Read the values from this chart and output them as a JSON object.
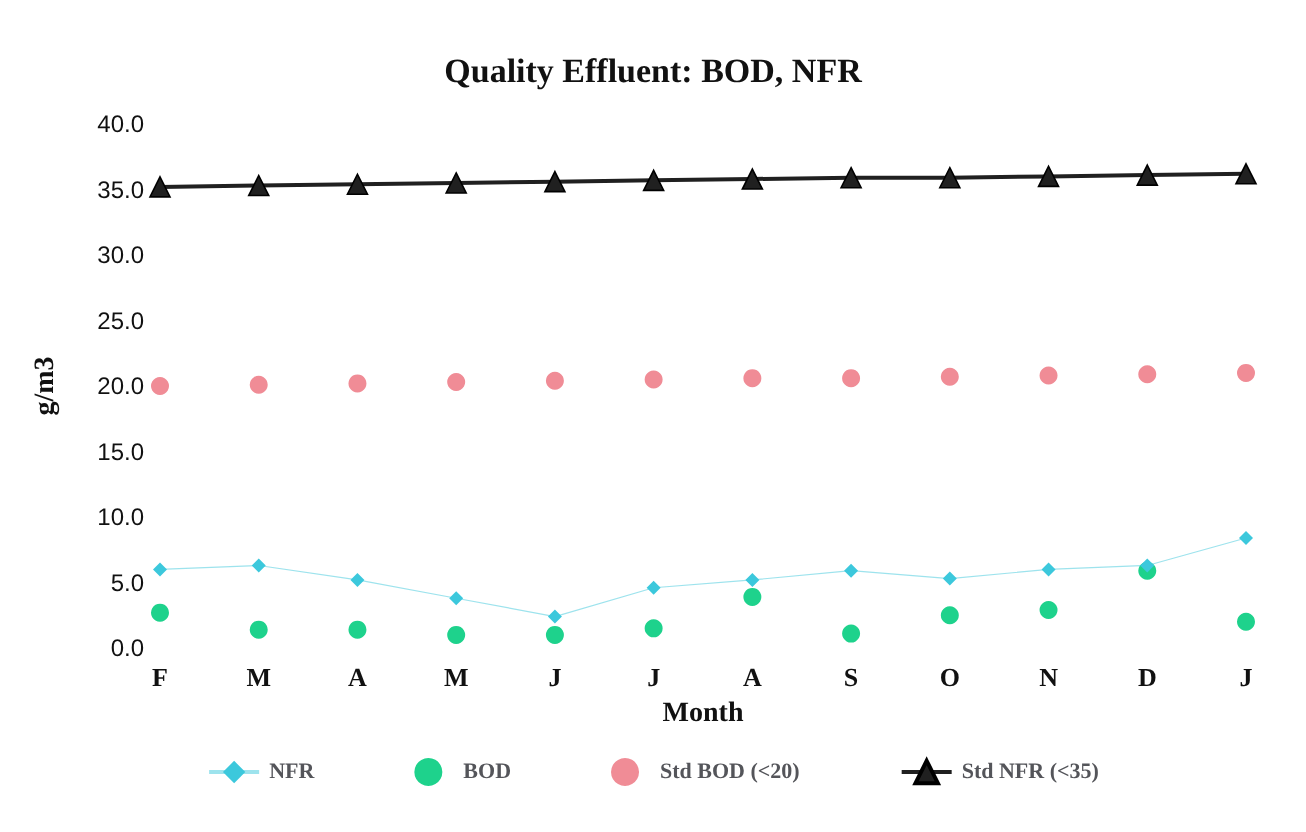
{
  "chart_data": {
    "type": "scatter",
    "title": "Quality Effluent: BOD, NFR",
    "xlabel": "Month",
    "ylabel": "g/m3",
    "categories": [
      "F",
      "M",
      "A",
      "M",
      "J",
      "J",
      "A",
      "S",
      "O",
      "N",
      "D",
      "J"
    ],
    "series": [
      {
        "name": "NFR",
        "type": "line",
        "marker": "diamond",
        "color": "#3cc8dc",
        "values": [
          6.0,
          6.3,
          5.2,
          3.8,
          2.4,
          4.6,
          5.2,
          5.9,
          5.3,
          6.0,
          6.3,
          8.4
        ]
      },
      {
        "name": "BOD",
        "marker": "circle",
        "color": "#1ed28c",
        "values": [
          2.7,
          1.4,
          1.4,
          1.0,
          1.0,
          1.5,
          3.9,
          1.1,
          2.5,
          2.9,
          5.9,
          2.0
        ]
      },
      {
        "name": "Std BOD (<20)",
        "marker": "circle",
        "color": "#f08c96",
        "values": [
          20.0,
          20.1,
          20.2,
          20.3,
          20.4,
          20.5,
          20.6,
          20.6,
          20.7,
          20.8,
          20.9,
          21.0
        ]
      },
      {
        "name": "Std NFR (<35)",
        "type": "line",
        "marker": "triangle",
        "color": "#202020",
        "values": [
          35.2,
          35.3,
          35.4,
          35.5,
          35.6,
          35.7,
          35.8,
          35.9,
          35.9,
          36.0,
          36.1,
          36.2
        ]
      }
    ],
    "ylim": [
      0,
      40
    ],
    "yticks": [
      {
        "value": 0,
        "label": "0.0"
      },
      {
        "value": 5,
        "label": "5.0"
      },
      {
        "value": 10,
        "label": "10.0"
      },
      {
        "value": 15,
        "label": "15.0"
      },
      {
        "value": 20,
        "label": "20.0"
      },
      {
        "value": 25,
        "label": "25.0"
      },
      {
        "value": 30,
        "label": "30.0"
      },
      {
        "value": 35,
        "label": "35.0"
      },
      {
        "value": 40,
        "label": "40.0"
      }
    ],
    "grid": false,
    "legend": "bottom"
  }
}
